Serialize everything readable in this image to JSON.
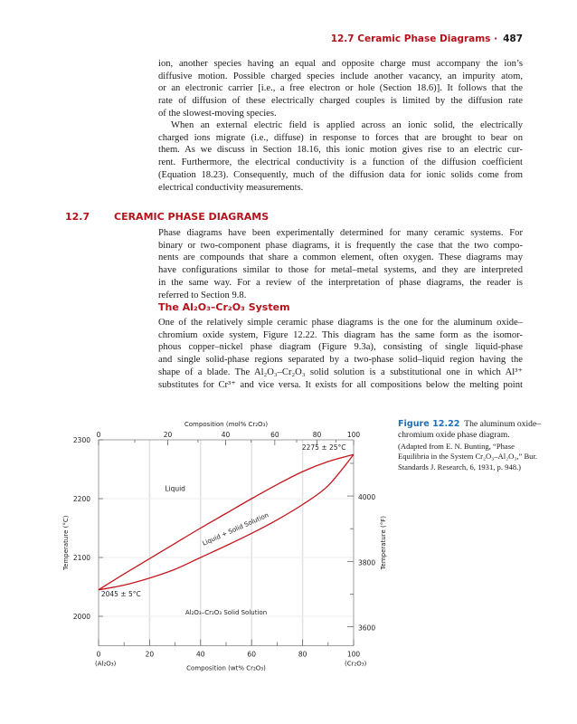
{
  "header": {
    "title": "12.7 Ceramic Phase Diagrams",
    "separator": "·",
    "page_number": "487"
  },
  "paragraph1": [
    "ion, another species having an equal and opposite charge must accompany the ion’s",
    "diffusive motion. Possible charged species include another vacancy, an impurity atom,",
    "or an electronic carrier [i.e., a free electron or hole (Section 18.6)]. It follows that the",
    "rate of diffusion of these electrically charged couples is limited by the diffusion rate",
    "of the slowest-moving species."
  ],
  "paragraph2": [
    "When an external electric field is applied across an ionic solid, the electrically",
    "charged ions migrate (i.e., diffuse) in response to forces that are brought to bear on",
    "them. As we discuss in Section 18.16, this ionic motion gives rise to an electric cur-",
    "rent. Furthermore, the electrical conductivity is a function of the diffusion coefficient",
    "(Equation 18.23). Consequently, much of the diffusion data for ionic solids come from",
    "electrical conductivity measurements."
  ],
  "section": {
    "number": "12.7",
    "title": "CERAMIC PHASE DIAGRAMS"
  },
  "paragraph3": [
    "Phase diagrams have been experimentally determined for many ceramic systems. For",
    "binary or two-component phase diagrams, it is frequently the case that the two compo-",
    "nents are compounds that share a common element, often oxygen. These diagrams may",
    "have configurations similar to those for metal–metal systems, and they are interpreted",
    "in the same way. For a review of the interpretation of phase diagrams, the reader is",
    "referred to Section 9.8."
  ],
  "subsection": {
    "title": "The Al₂O₃–Cr₂O₃ System"
  },
  "paragraph4": [
    "One of the relatively simple ceramic phase diagrams is the one for the aluminum oxide–",
    "chromium oxide system, Figure 12.22. This diagram has the same form as the isomor-",
    "phous copper–nickel phase diagram (Figure 9.3a), consisting of single liquid-phase",
    "and single solid-phase regions separated by a two-phase solid–liquid region having the",
    "shape of a blade. The Al₂O₃–Cr₂O₃ solid solution is a substitutional one in which Al³⁺",
    "substitutes for Cr³⁺ and vice versa. It exists for all compositions below the melting point"
  ],
  "caption": {
    "label": "Figure 12.22",
    "text": "The aluminum oxide–chromium oxide phase diagram.",
    "source": "(Adapted from E. N. Bunting, “Phase Equilibria in the System Cr₂O₃–Al₂O₃,” Bur. Standards J. Research, 6, 1931, p. 948.)"
  },
  "chart_data": {
    "type": "line",
    "xlabel": "Composition (wt% Cr₂O₃)",
    "x2label": "Composition (mol% Cr₂O₃)",
    "ylabel": "Temperature (°C)",
    "y2label": "Temperature (°F)",
    "xlim": [
      0,
      100
    ],
    "ylim": [
      1950,
      2300
    ],
    "xticks": [
      0,
      20,
      40,
      60,
      80,
      100
    ],
    "x2ticks": [
      0,
      20,
      40,
      60,
      80,
      100
    ],
    "yticks": [
      2000,
      2100,
      2200,
      2300
    ],
    "y2ticks": [
      3600,
      3800,
      4000
    ],
    "x_end_labels": [
      "(Al₂O₃)",
      "(Cr₂O₃)"
    ],
    "grid": true,
    "line_color": "#c4161c",
    "series": [
      {
        "x": [
          0,
          10,
          20,
          30,
          40,
          50,
          60,
          70,
          80,
          90,
          100
        ],
        "y": [
          2045,
          2072,
          2098,
          2124,
          2150,
          2175,
          2200,
          2224,
          2246,
          2263,
          2275
        ]
      },
      {
        "x": [
          0,
          10,
          20,
          30,
          40,
          50,
          60,
          70,
          80,
          90,
          100
        ],
        "y": [
          2045,
          2053,
          2065,
          2080,
          2100,
          2120,
          2141,
          2164,
          2190,
          2222,
          2275
        ]
      }
    ],
    "annotations": {
      "liquid": "Liquid",
      "two_phase": "Liquid + Solid Solution",
      "solid": "Al₂O₃–Cr₂O₃ Solid Solution",
      "mp_cr": "2275 ± 25°C",
      "mp_al": "2045 ± 5°C"
    }
  }
}
